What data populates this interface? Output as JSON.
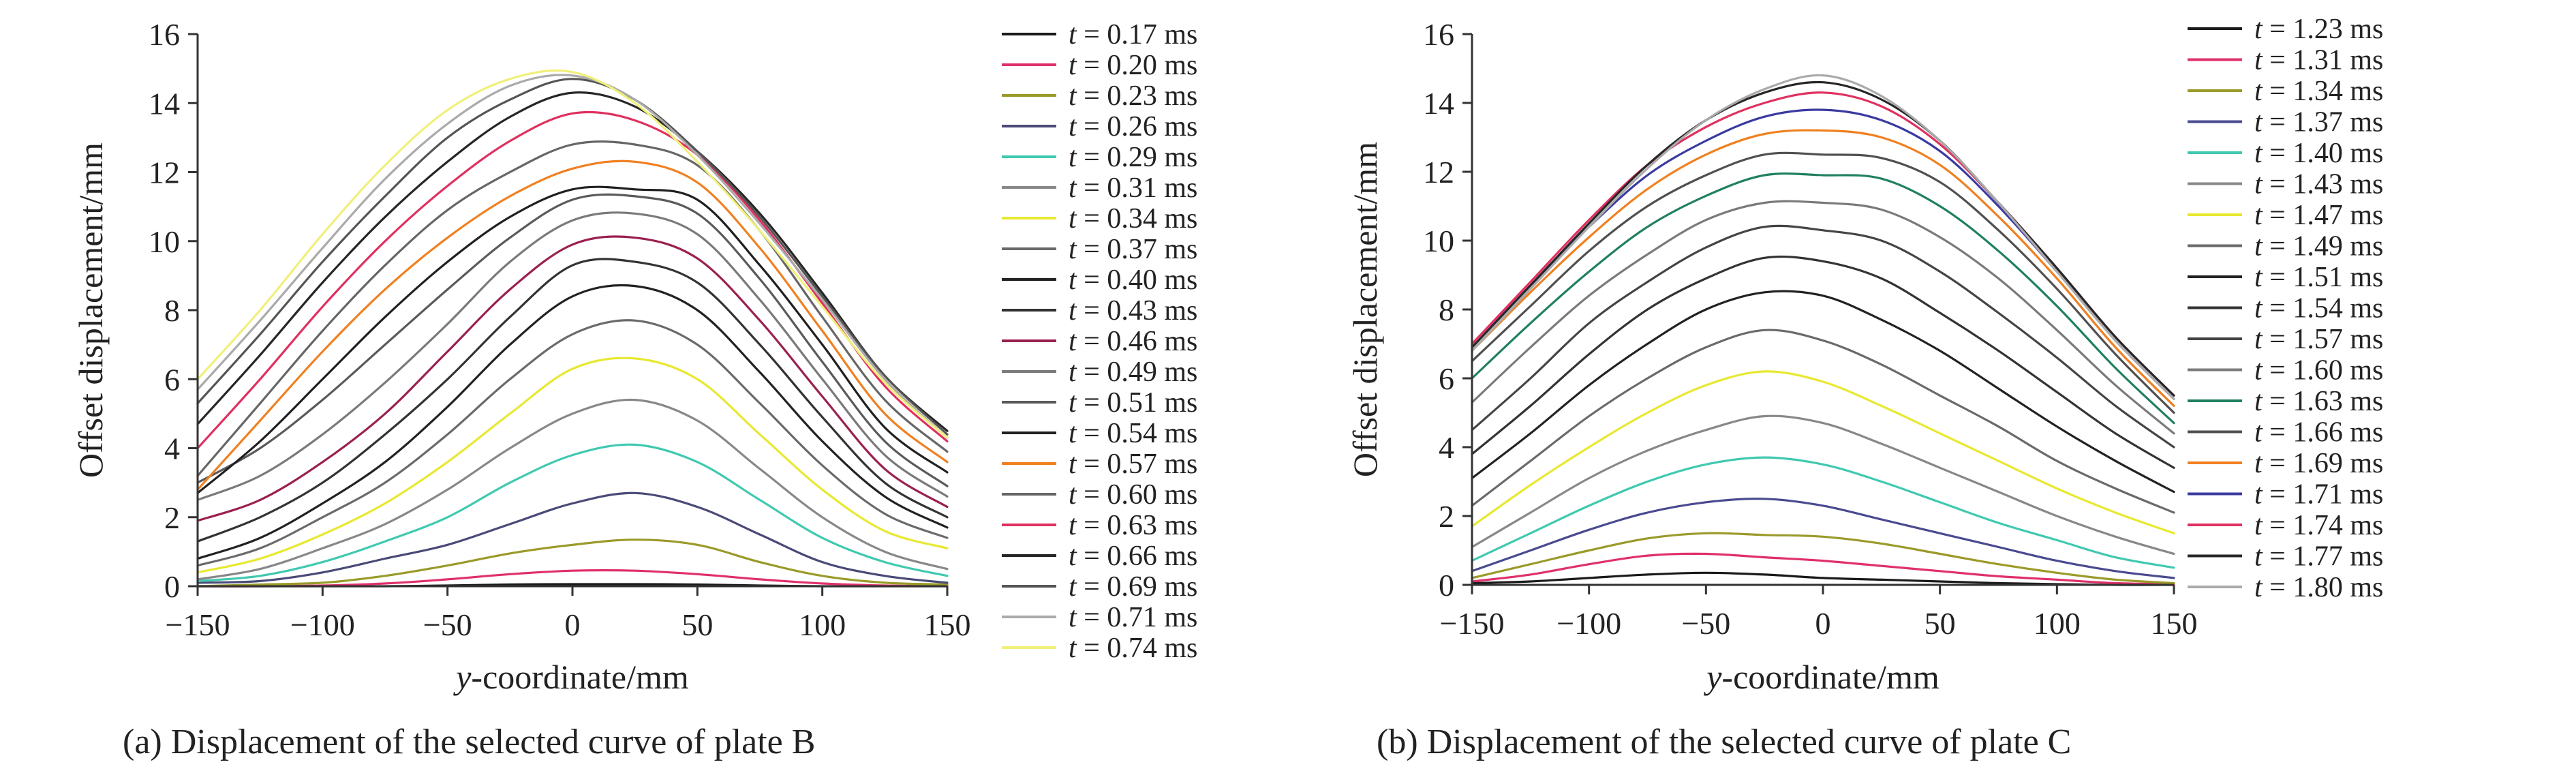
{
  "chart_data": [
    {
      "type": "line",
      "caption": "(a) Displacement of the selected curve of plate B",
      "xlabel_italic": "y",
      "xlabel_rest": "-coordinate/mm",
      "ylabel": "Offset displacement/mm",
      "xlim": [
        -150,
        150
      ],
      "ylim": [
        0,
        16
      ],
      "xticks": [
        -150,
        -100,
        -50,
        0,
        50,
        100,
        150
      ],
      "yticks": [
        0,
        2,
        4,
        6,
        8,
        10,
        12,
        14,
        16
      ],
      "legend_var": "t",
      "legend_unit": "ms",
      "x": [
        -150,
        -125,
        -100,
        -75,
        -50,
        -25,
        0,
        25,
        50,
        75,
        100,
        125,
        150
      ],
      "series": [
        {
          "name": "0.17",
          "color": "#1a1a1a",
          "values": [
            0.0,
            0.0,
            0.0,
            0.0,
            0.02,
            0.05,
            0.06,
            0.06,
            0.05,
            0.02,
            0.0,
            0.0,
            0.0
          ]
        },
        {
          "name": "0.20",
          "color": "#e0306a",
          "values": [
            0.0,
            0.0,
            0.02,
            0.08,
            0.2,
            0.35,
            0.45,
            0.45,
            0.35,
            0.2,
            0.08,
            0.02,
            0.0
          ]
        },
        {
          "name": "0.23",
          "color": "#9a9a2a",
          "values": [
            0.0,
            0.05,
            0.1,
            0.3,
            0.6,
            0.95,
            1.2,
            1.35,
            1.2,
            0.7,
            0.3,
            0.1,
            0.05
          ]
        },
        {
          "name": "0.26",
          "color": "#4a4a78",
          "values": [
            0.1,
            0.15,
            0.4,
            0.8,
            1.2,
            1.8,
            2.4,
            2.7,
            2.3,
            1.5,
            0.7,
            0.3,
            0.1
          ]
        },
        {
          "name": "0.29",
          "color": "#40c9b0",
          "values": [
            0.15,
            0.3,
            0.7,
            1.3,
            2.0,
            3.0,
            3.8,
            4.1,
            3.6,
            2.5,
            1.4,
            0.7,
            0.3
          ]
        },
        {
          "name": "0.31",
          "color": "#888888",
          "values": [
            0.2,
            0.5,
            1.1,
            1.8,
            2.8,
            4.0,
            5.0,
            5.4,
            4.8,
            3.4,
            2.0,
            1.0,
            0.5
          ]
        },
        {
          "name": "0.34",
          "color": "#e8e832",
          "values": [
            0.4,
            0.8,
            1.5,
            2.4,
            3.6,
            5.0,
            6.3,
            6.6,
            6.0,
            4.4,
            2.8,
            1.6,
            1.1
          ]
        },
        {
          "name": "0.37",
          "color": "#6a6a6a",
          "values": [
            0.6,
            1.1,
            2.0,
            3.0,
            4.4,
            6.0,
            7.3,
            7.7,
            7.0,
            5.3,
            3.5,
            2.1,
            1.4
          ]
        },
        {
          "name": "0.40",
          "color": "#222222",
          "values": [
            0.8,
            1.4,
            2.4,
            3.6,
            5.2,
            7.0,
            8.4,
            8.7,
            8.0,
            6.2,
            4.2,
            2.6,
            1.7
          ]
        },
        {
          "name": "0.43",
          "color": "#333333",
          "values": [
            1.3,
            2.0,
            3.0,
            4.4,
            6.0,
            7.8,
            9.3,
            9.4,
            8.8,
            7.0,
            4.9,
            3.0,
            2.0
          ]
        },
        {
          "name": "0.46",
          "color": "#9a2050",
          "values": [
            1.9,
            2.5,
            3.6,
            5.0,
            6.8,
            8.6,
            9.9,
            10.1,
            9.5,
            7.7,
            5.5,
            3.4,
            2.3
          ]
        },
        {
          "name": "0.49",
          "color": "#7a7a7a",
          "values": [
            2.5,
            3.2,
            4.4,
            5.9,
            7.6,
            9.4,
            10.6,
            10.8,
            10.2,
            8.3,
            6.0,
            3.8,
            2.6
          ]
        },
        {
          "name": "0.51",
          "color": "#5a5a5a",
          "values": [
            3.0,
            4.0,
            5.4,
            7.0,
            8.6,
            10.1,
            11.2,
            11.3,
            10.8,
            8.9,
            6.5,
            4.2,
            2.9
          ]
        },
        {
          "name": "0.54",
          "color": "#202020",
          "values": [
            2.7,
            4.2,
            6.0,
            7.8,
            9.4,
            10.7,
            11.5,
            11.5,
            11.2,
            9.3,
            7.0,
            4.6,
            3.3
          ]
        },
        {
          "name": "0.57",
          "color": "#f08020",
          "values": [
            2.8,
            4.8,
            6.8,
            8.6,
            10.1,
            11.3,
            12.1,
            12.3,
            11.7,
            9.8,
            7.4,
            5.0,
            3.6
          ]
        },
        {
          "name": "0.60",
          "color": "#666666",
          "values": [
            3.2,
            5.3,
            7.4,
            9.3,
            10.9,
            12.0,
            12.8,
            12.8,
            12.2,
            10.3,
            7.8,
            5.4,
            3.9
          ]
        },
        {
          "name": "0.63",
          "color": "#e03060",
          "values": [
            4.0,
            6.0,
            8.1,
            10.0,
            11.6,
            12.9,
            13.7,
            13.5,
            12.5,
            10.6,
            8.2,
            5.8,
            4.2
          ]
        },
        {
          "name": "0.66",
          "color": "#262626",
          "values": [
            4.7,
            6.7,
            8.8,
            10.7,
            12.3,
            13.6,
            14.3,
            13.9,
            12.6,
            10.8,
            8.5,
            6.1,
            4.5
          ]
        },
        {
          "name": "0.69",
          "color": "#555555",
          "values": [
            5.3,
            7.3,
            9.4,
            11.3,
            13.0,
            14.1,
            14.7,
            14.1,
            12.6,
            10.7,
            8.4,
            6.1,
            4.4
          ]
        },
        {
          "name": "0.71",
          "color": "#aaaaaa",
          "values": [
            5.7,
            7.7,
            9.8,
            11.8,
            13.4,
            14.5,
            14.8,
            14.1,
            12.5,
            10.5,
            8.3,
            6.0,
            4.3
          ]
        },
        {
          "name": "0.74",
          "color": "#f0f07a",
          "values": [
            6.0,
            8.0,
            10.2,
            12.2,
            13.8,
            14.7,
            14.9,
            14.0,
            12.3,
            10.3,
            8.1,
            5.9,
            4.3
          ]
        }
      ]
    },
    {
      "type": "line",
      "caption": "(b) Displacement of the selected curve of plate C",
      "xlabel_italic": "y",
      "xlabel_rest": "-coordinate/mm",
      "ylabel": "Offset displacement/mm",
      "xlim": [
        -150,
        150
      ],
      "ylim": [
        0,
        16
      ],
      "xticks": [
        -150,
        -100,
        -50,
        0,
        50,
        100,
        150
      ],
      "yticks": [
        0,
        2,
        4,
        6,
        8,
        10,
        12,
        14,
        16
      ],
      "legend_var": "t",
      "legend_unit": "ms",
      "x": [
        -150,
        -125,
        -100,
        -75,
        -50,
        -25,
        0,
        25,
        50,
        75,
        100,
        125,
        150
      ],
      "series": [
        {
          "name": "1.23",
          "color": "#1a1a1a",
          "values": [
            0.05,
            0.1,
            0.2,
            0.3,
            0.35,
            0.3,
            0.2,
            0.15,
            0.1,
            0.05,
            0.02,
            0.0,
            0.0
          ]
        },
        {
          "name": "1.31",
          "color": "#e0306a",
          "values": [
            0.1,
            0.3,
            0.6,
            0.85,
            0.9,
            0.8,
            0.7,
            0.55,
            0.4,
            0.25,
            0.15,
            0.05,
            0.02
          ]
        },
        {
          "name": "1.34",
          "color": "#9a9a2a",
          "values": [
            0.2,
            0.6,
            1.0,
            1.35,
            1.5,
            1.45,
            1.4,
            1.2,
            0.9,
            0.6,
            0.35,
            0.15,
            0.05
          ]
        },
        {
          "name": "1.37",
          "color": "#4a4a90",
          "values": [
            0.4,
            1.0,
            1.6,
            2.1,
            2.4,
            2.5,
            2.3,
            1.9,
            1.5,
            1.1,
            0.7,
            0.4,
            0.2
          ]
        },
        {
          "name": "1.40",
          "color": "#40c9b0",
          "values": [
            0.7,
            1.5,
            2.3,
            3.0,
            3.5,
            3.7,
            3.5,
            3.0,
            2.4,
            1.8,
            1.3,
            0.8,
            0.5
          ]
        },
        {
          "name": "1.43",
          "color": "#888888",
          "values": [
            1.1,
            2.1,
            3.1,
            3.9,
            4.5,
            4.9,
            4.7,
            4.1,
            3.4,
            2.7,
            2.0,
            1.4,
            0.9
          ]
        },
        {
          "name": "1.47",
          "color": "#e8e832",
          "values": [
            1.7,
            2.9,
            4.0,
            5.0,
            5.8,
            6.2,
            5.9,
            5.2,
            4.4,
            3.6,
            2.8,
            2.1,
            1.5
          ]
        },
        {
          "name": "1.49",
          "color": "#6a6a6a",
          "values": [
            2.3,
            3.6,
            4.9,
            6.0,
            6.9,
            7.4,
            7.1,
            6.4,
            5.5,
            4.6,
            3.6,
            2.8,
            2.1
          ]
        },
        {
          "name": "1.51",
          "color": "#222222",
          "values": [
            3.1,
            4.4,
            5.8,
            7.0,
            8.0,
            8.5,
            8.4,
            7.7,
            6.8,
            5.7,
            4.6,
            3.6,
            2.7
          ]
        },
        {
          "name": "1.54",
          "color": "#333333",
          "values": [
            3.8,
            5.2,
            6.7,
            8.0,
            8.9,
            9.5,
            9.4,
            8.9,
            7.9,
            6.8,
            5.6,
            4.4,
            3.4
          ]
        },
        {
          "name": "1.57",
          "color": "#444444",
          "values": [
            4.5,
            6.0,
            7.6,
            8.8,
            9.8,
            10.4,
            10.3,
            10.0,
            9.1,
            7.9,
            6.6,
            5.2,
            4.0
          ]
        },
        {
          "name": "1.60",
          "color": "#7a7a7a",
          "values": [
            5.3,
            6.9,
            8.4,
            9.6,
            10.6,
            11.1,
            11.1,
            10.9,
            10.1,
            8.9,
            7.4,
            5.8,
            4.4
          ]
        },
        {
          "name": "1.63",
          "color": "#208060",
          "values": [
            6.0,
            7.6,
            9.1,
            10.4,
            11.3,
            11.9,
            11.9,
            11.8,
            11.0,
            9.7,
            8.1,
            6.3,
            4.7
          ]
        },
        {
          "name": "1.66",
          "color": "#505050",
          "values": [
            6.5,
            8.1,
            9.7,
            11.0,
            11.9,
            12.5,
            12.5,
            12.4,
            11.7,
            10.3,
            8.6,
            6.7,
            5.0
          ]
        },
        {
          "name": "1.69",
          "color": "#f08020",
          "values": [
            6.8,
            8.5,
            10.1,
            11.5,
            12.5,
            13.1,
            13.2,
            13.0,
            12.2,
            10.7,
            8.9,
            6.9,
            5.2
          ]
        },
        {
          "name": "1.71",
          "color": "#3a3aa0",
          "values": [
            6.9,
            8.7,
            10.4,
            11.9,
            12.9,
            13.6,
            13.8,
            13.5,
            12.6,
            11.0,
            9.1,
            7.1,
            5.4
          ]
        },
        {
          "name": "1.74",
          "color": "#e03060",
          "values": [
            7.0,
            8.8,
            10.6,
            12.2,
            13.3,
            14.0,
            14.3,
            13.9,
            12.8,
            11.1,
            9.2,
            7.2,
            5.5
          ]
        },
        {
          "name": "1.77",
          "color": "#262626",
          "values": [
            6.9,
            8.7,
            10.5,
            12.2,
            13.5,
            14.3,
            14.6,
            14.1,
            12.9,
            11.1,
            9.2,
            7.2,
            5.5
          ]
        },
        {
          "name": "1.80",
          "color": "#aaaaaa",
          "values": [
            6.8,
            8.6,
            10.4,
            12.1,
            13.5,
            14.4,
            14.8,
            14.2,
            12.9,
            11.1,
            9.1,
            7.1,
            5.4
          ]
        }
      ]
    }
  ]
}
